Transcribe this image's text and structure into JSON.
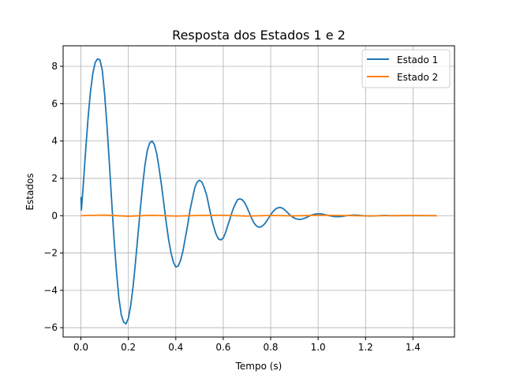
{
  "chart_data": {
    "type": "line",
    "title": "Resposta dos Estados 1 e 2",
    "xlabel": "Tempo (s)",
    "ylabel": "Estados",
    "xlim": [
      -0.075,
      1.575
    ],
    "ylim": [
      -6.5,
      9.1
    ],
    "xticks": [
      0.0,
      0.2,
      0.4,
      0.6,
      0.8,
      1.0,
      1.2,
      1.4
    ],
    "xtick_labels": [
      "0.0",
      "0.2",
      "0.4",
      "0.6",
      "0.8",
      "1.0",
      "1.2",
      "1.4"
    ],
    "yticks": [
      -6,
      -4,
      -2,
      0,
      2,
      4,
      6,
      8
    ],
    "ytick_labels": [
      "−6",
      "−4",
      "−2",
      "0",
      "2",
      "4",
      "6",
      "8"
    ],
    "grid": true,
    "legend_position": "top-right",
    "series": [
      {
        "name": "Estado 1",
        "color": "#1f77b4",
        "x": [
          0.0,
          0.002,
          0.01,
          0.02,
          0.03,
          0.04,
          0.05,
          0.06,
          0.07,
          0.08,
          0.09,
          0.1,
          0.11,
          0.12,
          0.13,
          0.14,
          0.15,
          0.16,
          0.17,
          0.18,
          0.19,
          0.2,
          0.21,
          0.22,
          0.23,
          0.24,
          0.25,
          0.26,
          0.27,
          0.28,
          0.29,
          0.3,
          0.31,
          0.32,
          0.33,
          0.34,
          0.35,
          0.36,
          0.37,
          0.38,
          0.39,
          0.4,
          0.41,
          0.42,
          0.43,
          0.44,
          0.45,
          0.46,
          0.47,
          0.48,
          0.49,
          0.5,
          0.51,
          0.52,
          0.53,
          0.54,
          0.55,
          0.56,
          0.57,
          0.58,
          0.59,
          0.6,
          0.61,
          0.62,
          0.63,
          0.64,
          0.65,
          0.66,
          0.67,
          0.68,
          0.69,
          0.7,
          0.71,
          0.72,
          0.73,
          0.74,
          0.75,
          0.76,
          0.77,
          0.78,
          0.79,
          0.8,
          0.81,
          0.82,
          0.83,
          0.84,
          0.85,
          0.86,
          0.87,
          0.88,
          0.89,
          0.9,
          0.91,
          0.92,
          0.93,
          0.94,
          0.95,
          0.96,
          0.97,
          0.98,
          0.99,
          1.0,
          1.01,
          1.02,
          1.03,
          1.04,
          1.05,
          1.06,
          1.07,
          1.08,
          1.09,
          1.1,
          1.11,
          1.12,
          1.13,
          1.14,
          1.15,
          1.16,
          1.17,
          1.18,
          1.19,
          1.2,
          1.21,
          1.22,
          1.23,
          1.24,
          1.25,
          1.26,
          1.27,
          1.28,
          1.29,
          1.3,
          1.31,
          1.32,
          1.33,
          1.34,
          1.35,
          1.36,
          1.37,
          1.38,
          1.39,
          1.4,
          1.41,
          1.42,
          1.43,
          1.44,
          1.45,
          1.46,
          1.47,
          1.48,
          1.49,
          1.5
        ],
        "y": [
          1.0,
          0.3,
          1.65,
          3.5,
          5.2,
          6.6,
          7.6,
          8.2,
          8.4,
          8.35,
          7.8,
          6.5,
          4.8,
          2.8,
          0.7,
          -1.3,
          -3.0,
          -4.4,
          -5.3,
          -5.7,
          -5.8,
          -5.5,
          -4.8,
          -3.8,
          -2.5,
          -1.1,
          0.3,
          1.6,
          2.7,
          3.5,
          3.9,
          4.0,
          3.8,
          3.3,
          2.5,
          1.6,
          0.6,
          -0.4,
          -1.3,
          -2.0,
          -2.5,
          -2.75,
          -2.7,
          -2.4,
          -1.9,
          -1.2,
          -0.5,
          0.3,
          0.9,
          1.5,
          1.8,
          1.9,
          1.8,
          1.5,
          1.1,
          0.5,
          -0.1,
          -0.6,
          -1.0,
          -1.25,
          -1.3,
          -1.2,
          -0.9,
          -0.5,
          -0.1,
          0.3,
          0.6,
          0.85,
          0.9,
          0.85,
          0.7,
          0.45,
          0.15,
          -0.15,
          -0.4,
          -0.55,
          -0.62,
          -0.6,
          -0.5,
          -0.35,
          -0.15,
          0.05,
          0.22,
          0.35,
          0.42,
          0.44,
          0.4,
          0.3,
          0.18,
          0.05,
          -0.05,
          -0.13,
          -0.18,
          -0.2,
          -0.19,
          -0.15,
          -0.1,
          -0.04,
          0.02,
          0.06,
          0.09,
          0.1,
          0.1,
          0.08,
          0.05,
          0.02,
          -0.01,
          -0.03,
          -0.05,
          -0.05,
          -0.05,
          -0.04,
          -0.02,
          0.0,
          0.01,
          0.02,
          0.03,
          0.03,
          0.02,
          0.01,
          0.0,
          -0.01,
          -0.01,
          -0.02,
          -0.01,
          -0.01,
          0.0,
          0.0,
          0.01,
          0.01,
          0.01,
          0.0,
          0.0,
          0.0,
          0.0,
          0.0,
          0.0,
          0.0,
          0.0,
          0.0,
          0.0,
          0.0,
          0.0,
          0.0,
          0.0,
          0.0,
          0.0,
          0.0,
          0.0,
          0.0,
          0.0,
          0.0
        ]
      },
      {
        "name": "Estado 2",
        "color": "#ff7f0e",
        "x": [
          0.0,
          0.1,
          0.2,
          0.3,
          0.4,
          0.5,
          0.6,
          0.7,
          0.8,
          0.9,
          1.0,
          1.1,
          1.2,
          1.3,
          1.4,
          1.5
        ],
        "y": [
          0.0,
          0.03,
          -0.03,
          0.02,
          -0.02,
          0.01,
          0.02,
          -0.02,
          0.01,
          -0.01,
          0.02,
          0.01,
          -0.01,
          0.0,
          0.01,
          0.0
        ]
      }
    ]
  }
}
